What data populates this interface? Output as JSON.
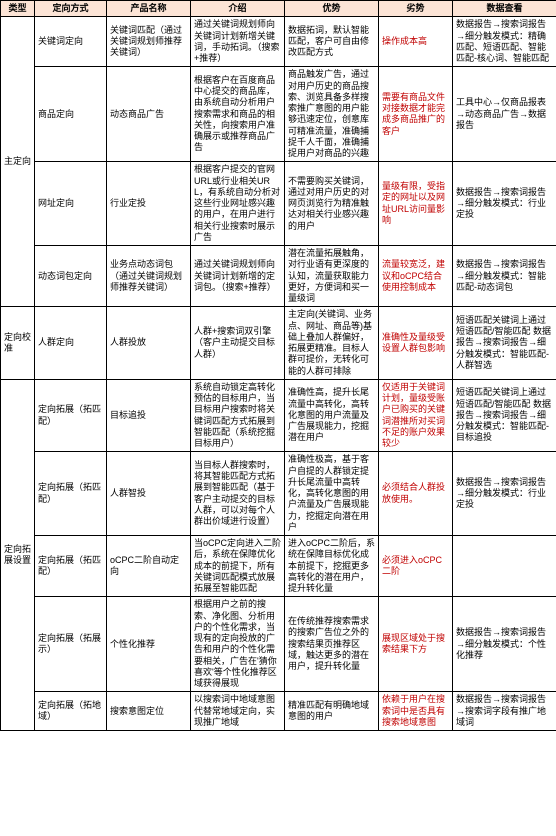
{
  "table": {
    "headers": [
      "类型",
      "定向方式",
      "产品名称",
      "介绍",
      "优势",
      "劣势",
      "数据查看"
    ],
    "rows": [
      {
        "c0": {
          "text": "主定向",
          "rowspan": 4
        },
        "c1": {
          "text": "关键词定向"
        },
        "c2": {
          "text": "关键词匹配（通过关键词规划师推荐关键词）"
        },
        "c3": {
          "text": "通过关键词规划师向关键词计划新增关键词，手动拓词。（搜索+推荐）"
        },
        "c4": {
          "text": "数据拓词，默认智能匹配，客户可自由修改匹配方式"
        },
        "c5": {
          "text": "操作成本高",
          "hl": true
        },
        "c6": {
          "text": "数据报告→搜索词报告→细分触发模式：精确匹配、短语匹配、智能匹配-核心词、智能匹配"
        }
      },
      {
        "c1": {
          "text": "商品定向"
        },
        "c2": {
          "text": "动态商品广告"
        },
        "c3": {
          "text": "根据客户在百度商品中心提交的商品库，由系统自动分析用户搜索需求和商品的相关性，向搜索用户准确展示或推荐商品广告"
        },
        "c4": {
          "text": "商品触发广告，通过对用户历史的商品搜索、浏览具备多样搜索推广意图的用户能够迅速定位，创意库可精准流量，准确捕捉千人千面，准确捕捉用户对商品的兴趣"
        },
        "c5": {
          "text": "需要有商品文件对接数据才能完成多商品推广的客户",
          "hl": true
        },
        "c6": {
          "text": "工具中心→仅商品报表→动态商品广告→数据报告"
        }
      },
      {
        "c1": {
          "text": "网址定向"
        },
        "c2": {
          "text": "行业定投"
        },
        "c3": {
          "text": "根据客户提交的官网URL或行业相关URL，有系统自动分析对这些行业网址感兴趣的用户，在用户进行相关行业搜索时展示广告"
        },
        "c4": {
          "text": "不需要购买关键词，通过对用户历史的对网页浏览行为精准触达对相关行业感兴趣的用户"
        },
        "c5": {
          "text": "量级有限，受指定的网址以及网址URL访问量影响",
          "hl": true
        },
        "c6": {
          "text": "数据报告→搜索词报告→细分触发模式：行业定投"
        }
      },
      {
        "c1": {
          "text": "动态词包定向"
        },
        "c2": {
          "text": "业务点动态词包（通过关键词规划师推荐关键词）"
        },
        "c3": {
          "text": "通过关键词规划师向关键词计划新增的定词包。（搜索+推荐）"
        },
        "c4": {
          "text": "潜在流量拓展触角，对行业语有更深度的认知，流量获取能力更好，方便词和买一量级词"
        },
        "c5": {
          "text": "流量较宽泛，建议和oCPC结合使用控制成本",
          "hl": true
        },
        "c6": {
          "text": "数据报告→搜索词报告→细分触发模式：智能匹配-动态词包"
        }
      },
      {
        "c0": {
          "text": "定向校准",
          "rowspan": 1
        },
        "c1": {
          "text": "人群定向"
        },
        "c2": {
          "text": "人群投放"
        },
        "c3": {
          "text": "人群+搜索词双引擎（客户主动提交目标人群）"
        },
        "c4": {
          "text": "主定向(关键词、业务点、网址、商品等)基础上叠加人群偏好，拓展更精准。目标人群可提价，无转化可能的人群可排除"
        },
        "c5": {
          "text": "准确性及量级受设置人群包影响",
          "hl": true
        },
        "c6": {
          "text": "短语匹配关键词上通过短语匹配/智能匹配\n数据报告→搜索词报告→细分触发模式：智能匹配-人群智选"
        }
      },
      {
        "c0": {
          "text": "定向拓展设置",
          "rowspan": 5
        },
        "c1": {
          "text": "定向拓展（拓匹配）"
        },
        "c2": {
          "text": "目标追投"
        },
        "c3": {
          "text": "系统自动锁定高转化预估的目标用户，当目标用户搜索时将关键词匹配方式拓展到智能匹配（系统挖掘目标用户）"
        },
        "c4": {
          "text": "准确性高，提升长尾流量中高转化，高转化意图的用户流量及广告展现能力，挖掘潜在用户"
        },
        "c5": {
          "text": "仅适用于关键词计划，量级受账户已购买的关键词潜推所对买词不足的账户效果较少",
          "hl": true
        },
        "c6": {
          "text": "短语匹配关键词上通过短语匹配/智能匹配\n数据报告→搜索词报告→细分触发模式：智能匹配-目标追投"
        }
      },
      {
        "c1": {
          "text": "定向拓展（拓匹配）"
        },
        "c2": {
          "text": "人群智投"
        },
        "c3": {
          "text": "当目标人群搜索时，将其智能匹配方式拓展到智能匹配（基于客户主动提交的目标人群，可以对每个人群出价域进行设置）"
        },
        "c4": {
          "text": "准确性极高，基于客户自提的人群锁定提升长尾流量中高转化，高转化意图的用户流量及广告展现能力，挖掘定向潜在用户"
        },
        "c5": {
          "text": "必须结合人群投放使用。",
          "hl": true
        },
        "c6": {
          "text": "数据报告→搜索词报告→细分触发模式：行业定投"
        }
      },
      {
        "c1": {
          "text": "定向拓展（拓匹配）"
        },
        "c2": {
          "text": "oCPC二阶自动定向"
        },
        "c3": {
          "text": "当oCPC定向进入二阶后，系统在保障优化成本的前提下，所有关键词匹配模式放展拓展至智能匹配"
        },
        "c4": {
          "text": "进入oCPC二阶后，系统在保障目标优化成本前提下，挖掘更多高转化的潜在用户，提升转化量"
        },
        "c5": {
          "text": "必须进入oCPC二阶",
          "hl": true
        },
        "c6": {
          "text": ""
        }
      },
      {
        "c1": {
          "text": "定向拓展（拓展示）"
        },
        "c2": {
          "text": "个性化推荐"
        },
        "c3": {
          "text": "根据用户之前的搜索、净化图、分析用户的个性化需求，当现有的定向投放的广告和用户的个性化需要相关，广告在'猜你喜欢'等个性化推荐区域获得展现"
        },
        "c4": {
          "text": "在传统推荐搜索需求的搜索广告位之外的搜索结果页推荐区域，触达更多的潜在用户，提升转化量"
        },
        "c5": {
          "text": "展现区域处于搜索结果下方",
          "hl": true
        },
        "c6": {
          "text": "数据报告→搜索词报告→细分触发模式：个性化推荐"
        }
      },
      {
        "c1": {
          "text": "定向拓展（拓地域）"
        },
        "c2": {
          "text": "搜索意图定位"
        },
        "c3": {
          "text": "以搜索词中地域意图代替常地域定向，实现推广地域"
        },
        "c4": {
          "text": "精准匹配有明确地域意图的用户"
        },
        "c5": {
          "text": "依赖于用户在搜索词中是否具有搜索地域意图",
          "hl": true
        },
        "c6": {
          "text": "数据报告→搜索词报告→搜索词字段有推广地域词"
        }
      }
    ]
  }
}
